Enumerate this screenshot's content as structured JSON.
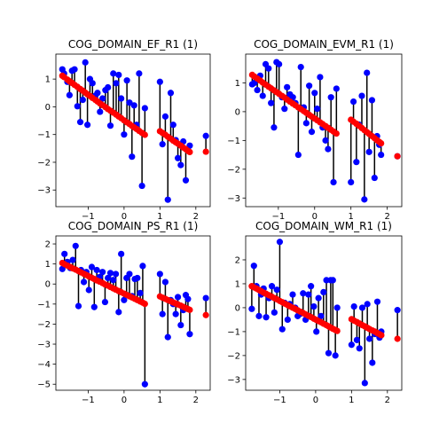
{
  "colors": {
    "observed": "#0000ff",
    "fitted": "#ff0000",
    "residual_line": "#000000"
  },
  "chart_data": [
    {
      "type": "scatter",
      "title": "COG_DOMAIN_EF_R1 (1)",
      "xlabel": "",
      "ylabel": "",
      "xlim": [
        -1.9,
        2.4
      ],
      "ylim": [
        -3.6,
        1.9
      ],
      "xticks": [
        -1,
        0,
        1,
        2
      ],
      "yticks": [
        -3,
        -2,
        -1,
        0,
        1
      ],
      "grid": false,
      "x": [
        -1.72,
        -1.67,
        -1.58,
        -1.52,
        -1.45,
        -1.38,
        -1.3,
        -1.22,
        -1.15,
        -1.08,
        -1.02,
        -0.95,
        -0.88,
        -0.8,
        -0.74,
        -0.67,
        -0.6,
        -0.52,
        -0.45,
        -0.38,
        -0.3,
        -0.22,
        -0.15,
        -0.08,
        0.0,
        0.08,
        0.15,
        0.22,
        0.28,
        0.35,
        0.42,
        0.5,
        0.58,
        1.0,
        1.07,
        1.15,
        1.22,
        1.3,
        1.37,
        1.44,
        1.5,
        1.58,
        1.65,
        1.72,
        1.78,
        1.83,
        2.28
      ],
      "observed": [
        1.35,
        1.2,
        0.9,
        0.42,
        1.3,
        1.35,
        0.02,
        -0.55,
        0.25,
        1.6,
        -0.65,
        1.0,
        0.85,
        0.4,
        0.5,
        -0.18,
        0.3,
        0.6,
        0.7,
        -0.68,
        1.2,
        0.85,
        1.15,
        0.3,
        -1.0,
        0.95,
        0.15,
        -1.8,
        0.05,
        -0.65,
        1.2,
        -2.85,
        -0.05,
        0.9,
        -1.35,
        -0.35,
        -3.35,
        0.5,
        -0.65,
        -1.2,
        -1.85,
        -2.1,
        -1.25,
        -2.65,
        -1.55,
        -1.4,
        -1.05
      ],
      "fitted": [
        1.12,
        1.07,
        0.98,
        0.92,
        0.86,
        0.79,
        0.72,
        0.64,
        0.58,
        0.51,
        0.45,
        0.39,
        0.32,
        0.25,
        0.19,
        0.12,
        0.06,
        -0.01,
        -0.08,
        -0.14,
        -0.21,
        -0.28,
        -0.35,
        -0.41,
        -0.49,
        -0.56,
        -0.62,
        -0.69,
        -0.74,
        -0.8,
        -0.87,
        -0.94,
        -1.01,
        -0.88,
        -0.94,
        -1.01,
        -1.08,
        -1.15,
        -1.22,
        -1.28,
        -1.33,
        -1.4,
        -1.47,
        -1.53,
        -1.59,
        -1.63,
        -1.62
      ]
    },
    {
      "type": "scatter",
      "title": "COG_DOMAIN_EVM_R1 (1)",
      "xlabel": "",
      "ylabel": "",
      "xlim": [
        -1.9,
        2.4
      ],
      "ylim": [
        -3.3,
        2.0
      ],
      "xticks": [
        -1,
        0,
        1,
        2
      ],
      "yticks": [
        -3,
        -2,
        -1,
        0,
        1
      ],
      "grid": false,
      "x": [
        -1.72,
        -1.66,
        -1.58,
        -1.5,
        -1.43,
        -1.35,
        -1.27,
        -1.2,
        -1.12,
        -1.05,
        -0.98,
        -0.9,
        -0.83,
        -0.76,
        -0.68,
        -0.6,
        -0.53,
        -0.45,
        -0.38,
        -0.3,
        -0.23,
        -0.15,
        -0.08,
        0.0,
        0.07,
        0.15,
        0.22,
        0.3,
        0.37,
        0.45,
        0.52,
        0.6,
        1.0,
        1.07,
        1.15,
        1.22,
        1.3,
        1.37,
        1.44,
        1.5,
        1.58,
        1.65,
        1.72,
        1.78,
        1.83,
        2.28
      ],
      "observed": [
        0.95,
        1.0,
        0.75,
        1.25,
        0.55,
        1.65,
        1.5,
        0.3,
        -0.55,
        1.72,
        1.65,
        0.5,
        0.1,
        0.85,
        0.6,
        0.5,
        0.3,
        -1.5,
        1.55,
        0.15,
        -0.4,
        0.9,
        -0.7,
        0.65,
        0.1,
        1.2,
        -0.55,
        -1.0,
        -1.3,
        0.5,
        -2.45,
        0.8,
        -2.45,
        0.35,
        -1.75,
        -0.45,
        0.55,
        -3.05,
        1.35,
        -1.4,
        0.4,
        -2.3,
        -0.85,
        -1.15,
        -1.5,
        -1.55
      ],
      "fitted": [
        1.28,
        1.22,
        1.15,
        1.08,
        1.01,
        0.94,
        0.87,
        0.81,
        0.74,
        0.68,
        0.62,
        0.55,
        0.49,
        0.42,
        0.35,
        0.28,
        0.22,
        0.15,
        0.09,
        0.02,
        -0.04,
        -0.11,
        -0.17,
        -0.24,
        -0.3,
        -0.37,
        -0.43,
        -0.5,
        -0.56,
        -0.63,
        -0.69,
        -0.76,
        -0.28,
        -0.35,
        -0.42,
        -0.49,
        -0.57,
        -0.64,
        -0.71,
        -0.77,
        -0.85,
        -0.92,
        -0.99,
        -1.05,
        -1.1,
        -1.55
      ]
    },
    {
      "type": "scatter",
      "title": "COG_DOMAIN_PS_R1 (1)",
      "xlabel": "",
      "ylabel": "",
      "xlim": [
        -1.9,
        2.4
      ],
      "ylim": [
        -5.3,
        2.4
      ],
      "xticks": [
        -1,
        0,
        1,
        2
      ],
      "yticks": [
        -5,
        -4,
        -3,
        -2,
        -1,
        0,
        1,
        2
      ],
      "grid": false,
      "x": [
        -1.72,
        -1.66,
        -1.58,
        -1.5,
        -1.43,
        -1.35,
        -1.27,
        -1.2,
        -1.12,
        -1.05,
        -0.98,
        -0.9,
        -0.83,
        -0.76,
        -0.68,
        -0.6,
        -0.53,
        -0.45,
        -0.38,
        -0.3,
        -0.23,
        -0.15,
        -0.08,
        0.0,
        0.07,
        0.15,
        0.22,
        0.3,
        0.37,
        0.45,
        0.52,
        0.58,
        1.0,
        1.07,
        1.15,
        1.22,
        1.3,
        1.37,
        1.44,
        1.5,
        1.58,
        1.65,
        1.72,
        1.78,
        1.83,
        2.28
      ],
      "observed": [
        0.75,
        1.5,
        1.1,
        0.8,
        1.2,
        1.9,
        -1.1,
        0.7,
        0.1,
        0.6,
        -0.3,
        0.85,
        -1.15,
        0.7,
        0.35,
        0.6,
        -0.9,
        0.3,
        0.55,
        0.2,
        0.5,
        -1.4,
        1.5,
        -0.8,
        0.3,
        0.5,
        -0.6,
        0.25,
        0.3,
        -0.45,
        0.9,
        -5.0,
        0.5,
        -1.5,
        0.1,
        -2.65,
        -0.8,
        -1.0,
        -1.5,
        -0.65,
        -2.05,
        -1.3,
        -0.55,
        -0.75,
        -2.5,
        -0.7
      ],
      "fitted": [
        1.05,
        0.99,
        0.92,
        0.85,
        0.78,
        0.72,
        0.65,
        0.58,
        0.51,
        0.45,
        0.38,
        0.31,
        0.25,
        0.18,
        0.12,
        0.05,
        -0.02,
        -0.08,
        -0.15,
        -0.22,
        -0.28,
        -0.35,
        -0.41,
        -0.48,
        -0.54,
        -0.61,
        -0.67,
        -0.74,
        -0.8,
        -0.87,
        -0.93,
        -0.99,
        -0.62,
        -0.68,
        -0.74,
        -0.8,
        -0.86,
        -0.92,
        -0.97,
        -1.02,
        -1.08,
        -1.14,
        -1.2,
        -1.25,
        -1.29,
        -1.55
      ]
    },
    {
      "type": "scatter",
      "title": "COG_DOMAIN_WM_R1 (1)",
      "xlabel": "",
      "ylabel": "",
      "xlim": [
        -1.95,
        2.4
      ],
      "ylim": [
        -3.45,
        3.0
      ],
      "xticks": [
        -1,
        0,
        1,
        2
      ],
      "yticks": [
        -3,
        -2,
        -1,
        0,
        1,
        2
      ],
      "grid": false,
      "x": [
        -1.78,
        -1.72,
        -1.65,
        -1.58,
        -1.52,
        -1.45,
        -1.38,
        -1.3,
        -1.22,
        -1.15,
        -1.08,
        -1.0,
        -0.93,
        -0.86,
        -0.78,
        -0.72,
        -0.64,
        -0.57,
        -0.5,
        -0.42,
        -0.35,
        -0.28,
        -0.2,
        -0.13,
        -0.05,
        0.02,
        0.08,
        0.15,
        0.22,
        0.3,
        0.36,
        0.42,
        0.48,
        0.55,
        0.6,
        1.0,
        1.07,
        1.15,
        1.22,
        1.3,
        1.37,
        1.44,
        1.5,
        1.58,
        1.65,
        1.72,
        1.78,
        1.83,
        2.28
      ],
      "observed": [
        -0.05,
        1.75,
        0.9,
        -0.35,
        0.55,
        0.8,
        -0.4,
        0.4,
        0.9,
        -0.2,
        0.75,
        2.75,
        -0.9,
        0.2,
        -0.5,
        0.15,
        0.55,
        0.0,
        -0.35,
        -0.25,
        0.6,
        -0.5,
        0.55,
        0.9,
        0.05,
        -1.0,
        0.4,
        -0.35,
        0.65,
        1.15,
        -1.9,
        1.15,
        1.15,
        -2.0,
        0.0,
        -1.55,
        0.05,
        -1.35,
        -1.7,
        0.0,
        -3.15,
        0.15,
        -1.3,
        -2.3,
        -1.1,
        0.25,
        -1.25,
        -1.0,
        -0.1
      ],
      "fitted": [
        0.9,
        0.85,
        0.8,
        0.74,
        0.69,
        0.63,
        0.58,
        0.52,
        0.46,
        0.4,
        0.35,
        0.28,
        0.23,
        0.17,
        0.11,
        0.06,
        0.0,
        -0.05,
        -0.11,
        -0.17,
        -0.22,
        -0.28,
        -0.34,
        -0.39,
        -0.46,
        -0.51,
        -0.56,
        -0.61,
        -0.67,
        -0.73,
        -0.78,
        -0.83,
        -0.88,
        -0.93,
        -0.97,
        -0.48,
        -0.54,
        -0.6,
        -0.66,
        -0.73,
        -0.78,
        -0.84,
        -0.89,
        -0.95,
        -1.0,
        -1.06,
        -1.11,
        -1.15,
        -1.3
      ]
    }
  ]
}
